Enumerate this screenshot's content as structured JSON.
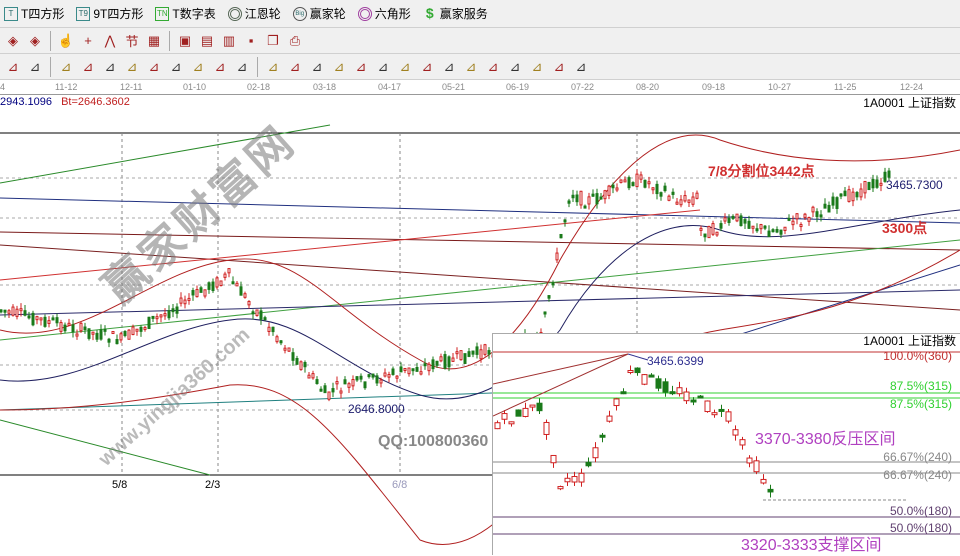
{
  "menubar": {
    "items": [
      {
        "label": "T四方形",
        "icon": "T"
      },
      {
        "label": "9T四方形",
        "icon": "T9"
      },
      {
        "label": "T数字表",
        "icon": "TN"
      },
      {
        "label": "江恩轮",
        "icon": "gann-wheel"
      },
      {
        "label": "赢家轮",
        "icon": "Big"
      },
      {
        "label": "六角形",
        "icon": "hexagon"
      },
      {
        "label": "赢家服务",
        "icon": "$"
      }
    ]
  },
  "toolbar1": {
    "icons": [
      "move-left-icon",
      "move-right-icon",
      "hand-icon",
      "crosshair-icon",
      "wave-icon",
      "section-icon",
      "multi-chart-icon",
      "calendar-icon",
      "calculator-icon",
      "notes-icon",
      "save-icon",
      "window-icon",
      "print-icon"
    ]
  },
  "toolbar2": {
    "icons": [
      "ruler-icon",
      "span-icon",
      "box-icon",
      "fan-icon",
      "grid-box-icon",
      "gann-box-icon",
      "angle-icon",
      "wave-v-icon",
      "grid-icon",
      "grid2-icon",
      "parallel-icon",
      "table-icon",
      "percent-fan-icon",
      "percent-icon",
      "percent-line-icon",
      "gold-circle-icon",
      "gold-line-icon",
      "pen-icon",
      "arc-icon",
      "gold-icon",
      "j-line-icon",
      "f-line-icon",
      "gold-fan-icon",
      "time-line-icon",
      "fib-line-icon",
      "four-line-icon"
    ]
  },
  "date_axis": [
    "4",
    "11-12",
    "12-11",
    "01-10",
    "02-18",
    "03-18",
    "04-17",
    "05-21",
    "06-19",
    "07-22",
    "08-20",
    "09-18",
    "10-27",
    "11-25",
    "12-24"
  ],
  "info": {
    "value": "2943.1096",
    "bt": "Bt=2646.3602"
  },
  "main_chart": {
    "symbol": "1A0001  上证指数",
    "annotations": {
      "fib78": "7/8分割位3442点",
      "high": "3465.7300",
      "level3300": "3300点",
      "low": "2646.8000",
      "qq": "QQ:100800360"
    },
    "bottom_labels": [
      "5/8",
      "2/3",
      "6/8"
    ]
  },
  "inset_chart": {
    "symbol": "1A0001  上证指数",
    "high": "3465.6399",
    "levels": [
      "100.0%(360)",
      "87.5%(315)",
      "87.5%(315)",
      "66.67%(240)",
      "66.67%(240)",
      "50.0%(180)",
      "50.0%(180)"
    ],
    "resistance": "3370-3380反压区间",
    "support": "3320-3333支撑区间"
  },
  "watermark": {
    "text": "赢家财富网",
    "url": "www.yingjia360.com"
  },
  "colors": {
    "up": "#d02020",
    "down": "#1a7a1a",
    "resistance_text": "#b040c0",
    "annotation_red": "#d03030",
    "fib_green": "#30d030"
  }
}
